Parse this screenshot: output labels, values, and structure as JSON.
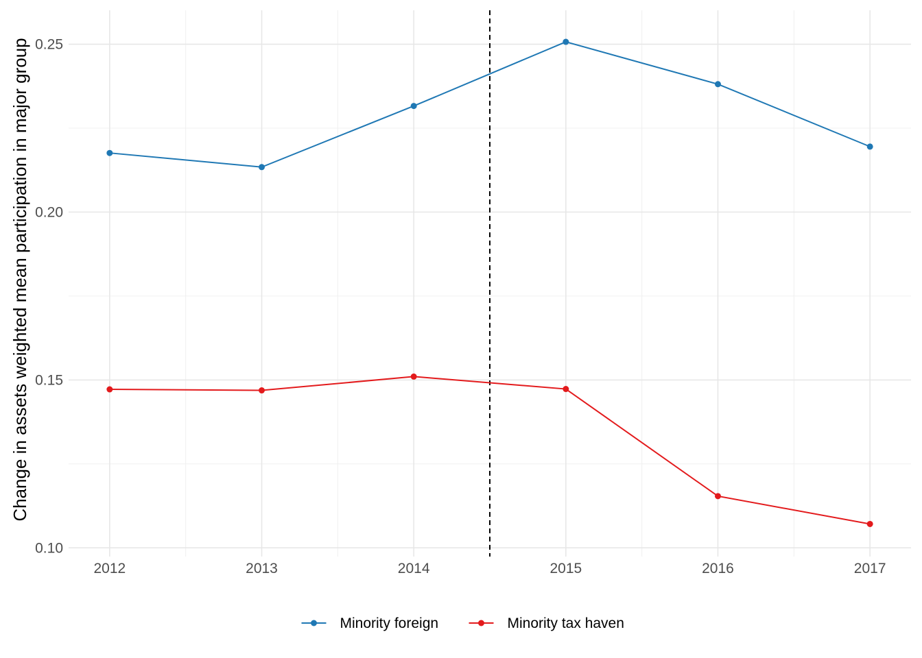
{
  "chart_data": {
    "type": "line",
    "title": "",
    "xlabel": "",
    "ylabel": "Change in assets weighted mean participation in major group",
    "x": [
      2012,
      2013,
      2014,
      2015,
      2016,
      2017
    ],
    "xlim": [
      2011.73,
      2017.27
    ],
    "ylim": [
      0.0974,
      0.2601
    ],
    "yticks": [
      0.1,
      0.15,
      0.2,
      0.25
    ],
    "ytick_labels": [
      "0.10",
      "0.15",
      "0.20",
      "0.25"
    ],
    "xtick_labels": [
      "2012",
      "2013",
      "2014",
      "2015",
      "2016",
      "2017"
    ],
    "grid": true,
    "reference_line": {
      "x": 2014.5,
      "style": "dashed",
      "color": "#000000"
    },
    "legend_position": "bottom",
    "series": [
      {
        "name": "Minority foreign",
        "color": "#1f78b4",
        "values": [
          0.2176,
          0.2134,
          0.2316,
          0.2507,
          0.2381,
          0.2195
        ]
      },
      {
        "name": "Minority tax haven",
        "color": "#e31a1c",
        "values": [
          0.1472,
          0.1469,
          0.151,
          0.1473,
          0.1154,
          0.1071
        ]
      }
    ]
  }
}
